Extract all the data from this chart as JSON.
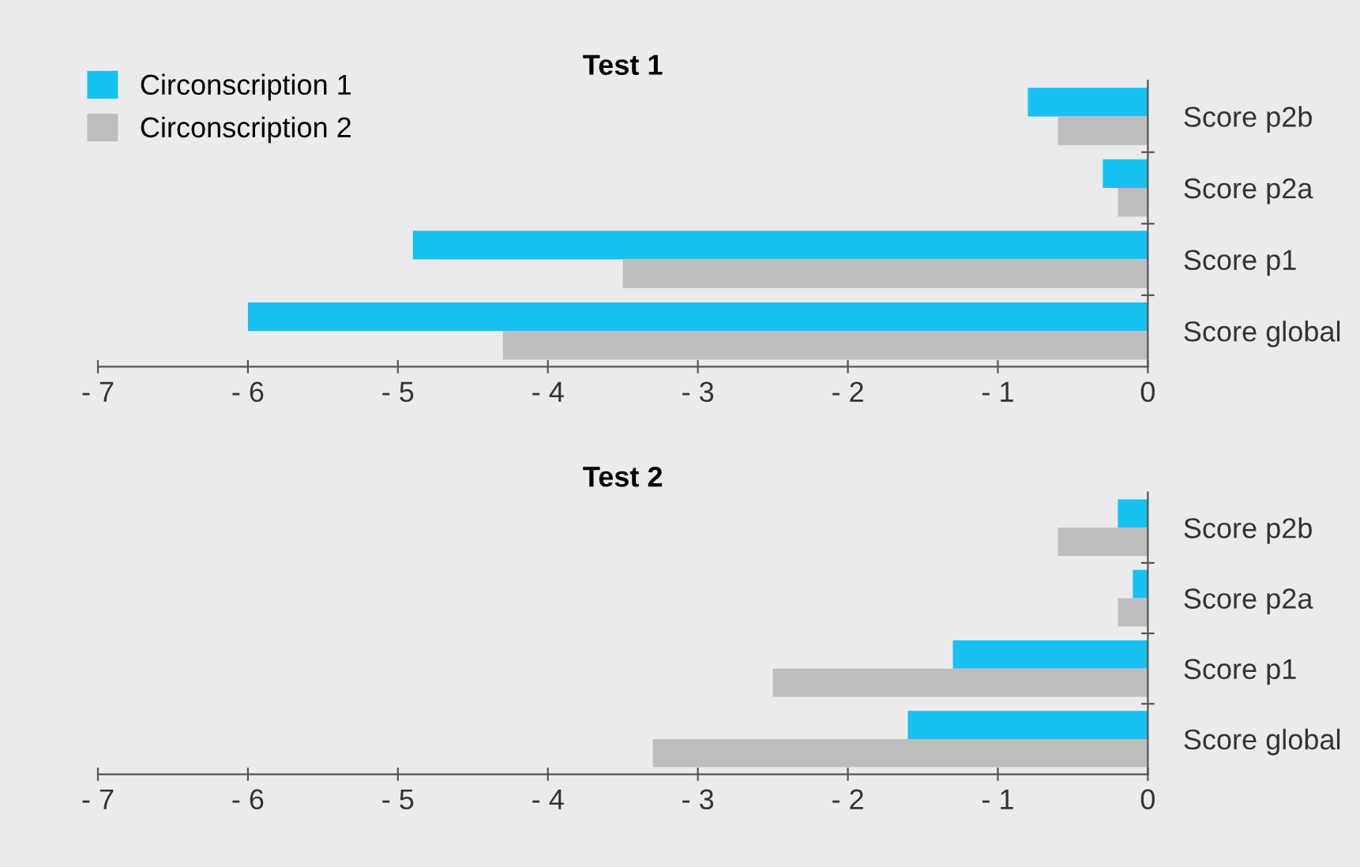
{
  "chart_data": [
    {
      "type": "bar",
      "orientation": "horizontal",
      "title": "Test 1",
      "categories": [
        "Score p2b",
        "Score p2a",
        "Score p1",
        "Score global"
      ],
      "series": [
        {
          "name": "Circonscription 1",
          "color": "#17c1f0",
          "values": [
            -0.8,
            -0.3,
            -4.9,
            -6.0
          ]
        },
        {
          "name": "Circonscription 2",
          "color": "#bdbdbf",
          "values": [
            -0.6,
            -0.2,
            -3.5,
            -4.3
          ]
        }
      ],
      "xlim": [
        -7,
        0
      ],
      "xticks": [
        {
          "value": -7,
          "label": "- 7"
        },
        {
          "value": -6,
          "label": "- 6"
        },
        {
          "value": -5,
          "label": "- 5"
        },
        {
          "value": -4,
          "label": "- 4"
        },
        {
          "value": -3,
          "label": "- 3"
        },
        {
          "value": -2,
          "label": "- 2"
        },
        {
          "value": -1,
          "label": "- 1"
        },
        0
      ],
      "grid": false,
      "legend": "top left"
    },
    {
      "type": "bar",
      "orientation": "horizontal",
      "title": "Test 2",
      "categories": [
        "Score p2b",
        "Score p2a",
        "Score p1",
        "Score global"
      ],
      "series": [
        {
          "color": "#17c1f0",
          "values": [
            -0.2,
            -0.1,
            -1.3,
            -1.6
          ]
        },
        {
          "color": "#bdbdbf",
          "values": [
            -0.6,
            -0.2,
            -2.5,
            -3.3
          ]
        }
      ],
      "xlim": [
        -7,
        0
      ],
      "xticks": [
        {
          "value": -7,
          "label": "- 7"
        },
        {
          "value": -6,
          "label": "- 6"
        },
        {
          "value": -5,
          "label": "- 5"
        },
        {
          "value": -4,
          "label": "- 4"
        },
        {
          "value": -3,
          "label": "- 3"
        },
        {
          "value": -2,
          "label": "- 2"
        },
        {
          "value": -1,
          "label": "- 1"
        },
        0
      ],
      "grid": false,
      "legend": false
    }
  ]
}
